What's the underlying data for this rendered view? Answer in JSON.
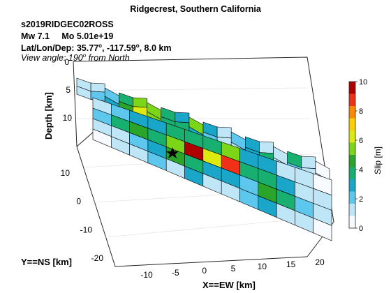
{
  "header": {
    "title": "Ridgecrest, Southern California",
    "event_id": "s2019RIDGEC02ROSS",
    "magnitude_line": "Mw 7.1     Mo 5.01e+19",
    "location_prefix": "Lat/Lon/Dep: ",
    "lat_value": "35.77",
    "lon_value": "-117.59",
    "depth_value": "8.0 km",
    "view_prefix": "View angle: ",
    "view_value": "190",
    "view_suffix": " from North"
  },
  "chart_data": {
    "type": "heatmap",
    "description_of_axes": "3D fault-slip plot",
    "xlabel": "X==EW [km]",
    "ylabel": "Y==NS [km]",
    "zlabel": "Depth [km]",
    "x_ticks": [
      "-10",
      "-5",
      "0",
      "5",
      "10",
      "15",
      "20"
    ],
    "y_ticks": [
      "10",
      "0",
      "-10",
      "-20"
    ],
    "z_ticks": [
      "0",
      "5",
      "10"
    ],
    "colorbar": {
      "label": "Slip [m]",
      "range": [
        0,
        10
      ],
      "ticks": [
        "0",
        "2",
        "4",
        "6",
        "8",
        "10"
      ],
      "colors": [
        "#f7fbff",
        "#bfe6f6",
        "#5ec7ee",
        "#19a6c8",
        "#18b070",
        "#2aa52a",
        "#7ad616",
        "#dcea10",
        "#ffcc00",
        "#ff8800",
        "#f03018",
        "#b00000"
      ]
    },
    "main_fault": {
      "rows": 4,
      "cols": 13,
      "slip_values_m": [
        [
          1.5,
          2.0,
          2.5,
          3.0,
          3.5,
          4.0,
          3.5,
          5.0,
          3.0,
          2.5,
          1.5,
          1.0,
          0.5
        ],
        [
          2.0,
          3.5,
          4.5,
          4.0,
          5.0,
          9.5,
          6.0,
          8.5,
          4.0,
          3.5,
          2.5,
          1.5,
          1.0
        ],
        [
          1.0,
          1.5,
          2.0,
          3.0,
          4.5,
          3.5,
          2.5,
          3.0,
          2.0,
          4.5,
          3.5,
          2.0,
          1.5
        ],
        [
          0.5,
          1.0,
          1.5,
          2.0,
          1.5,
          2.5,
          1.5,
          1.0,
          2.0,
          3.0,
          1.5,
          1.0,
          0.5
        ]
      ]
    },
    "upper_fault": {
      "rows": 2,
      "cols": 18,
      "slip_values_m": [
        [
          1.0,
          1.5,
          2.0,
          3.5,
          5.0,
          5.5,
          4.0,
          3.0,
          5.0,
          2.5,
          1.5,
          2.0,
          3.0,
          1.0,
          1.5,
          3.5,
          1.0,
          0.5
        ],
        [
          1.5,
          2.0,
          3.0,
          4.5,
          6.0,
          5.0,
          3.5,
          4.0,
          3.0,
          2.0,
          1.0,
          1.5,
          2.5,
          3.5,
          1.0,
          2.0,
          1.5,
          1.0
        ]
      ]
    },
    "hypocenter": {
      "marker": "star"
    },
    "grid": true
  }
}
